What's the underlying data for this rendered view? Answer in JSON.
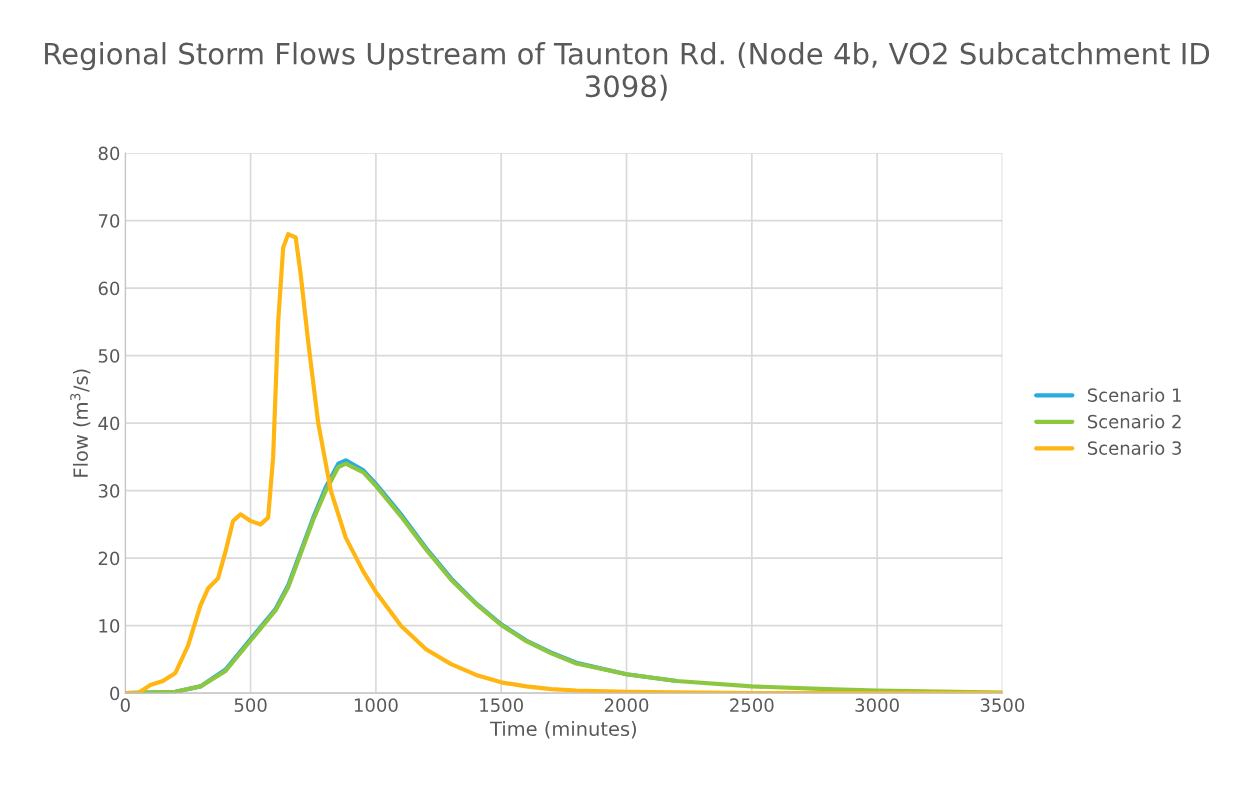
{
  "chart_data": {
    "type": "line",
    "title": "Regional Storm Flows Upstream of Taunton Rd. (Node 4b, VO2 Subcatchment ID 3098)",
    "xlabel": "Time (minutes)",
    "ylabel": "Flow (m$^{3}$/s)",
    "xlim": [
      0,
      3500
    ],
    "xticks": [
      0,
      500,
      1000,
      1500,
      2000,
      2500,
      3000,
      3500
    ],
    "ylim": [
      0,
      80
    ],
    "yticks": [
      0,
      10,
      20,
      30,
      40,
      50,
      60,
      70,
      80
    ],
    "grid": true,
    "legend": "right",
    "marker": "none",
    "line_style": "solid",
    "series": [
      {
        "name": "Scenario 1",
        "color": "#29abe2",
        "x": [
          0,
          200,
          300,
          400,
          500,
          600,
          650,
          700,
          750,
          800,
          850,
          880,
          950,
          1000,
          1100,
          1200,
          1300,
          1400,
          1500,
          1600,
          1700,
          1800,
          2000,
          2200
        ],
        "values": [
          0,
          0.2,
          1,
          3.5,
          8,
          12.5,
          16,
          21,
          26,
          30.5,
          34,
          34.5,
          33,
          31,
          26.5,
          21.5,
          17,
          13.3,
          10.2,
          7.8,
          6,
          4.5,
          2.8,
          1.8
        ]
      },
      {
        "name": "Scenario 2",
        "color": "#8dc63f",
        "x": [
          0,
          200,
          300,
          400,
          500,
          600,
          650,
          700,
          750,
          800,
          850,
          880,
          950,
          1000,
          1100,
          1200,
          1300,
          1400,
          1500,
          1600,
          1700,
          1800,
          2000,
          2200,
          2500,
          2800,
          3000,
          3500
        ],
        "values": [
          0,
          0.2,
          1,
          3.3,
          7.8,
          12.3,
          15.7,
          20.7,
          25.7,
          30,
          33.5,
          34,
          32.7,
          30.7,
          26.2,
          21.3,
          16.8,
          13.2,
          10.1,
          7.7,
          5.9,
          4.4,
          2.8,
          1.8,
          1,
          0.6,
          0.4,
          0.1
        ]
      },
      {
        "name": "Scenario 3",
        "color": "#ffb612",
        "x": [
          0,
          50,
          100,
          150,
          200,
          250,
          300,
          330,
          370,
          400,
          430,
          460,
          500,
          540,
          570,
          590,
          610,
          630,
          650,
          680,
          700,
          730,
          770,
          820,
          880,
          950,
          1000,
          1100,
          1200,
          1300,
          1400,
          1500,
          1600,
          1700,
          1800,
          2000,
          2500,
          3500
        ],
        "values": [
          0,
          0,
          1.2,
          1.8,
          3,
          7,
          13,
          15.5,
          17,
          21,
          25.5,
          26.5,
          25.5,
          25,
          26,
          35,
          55,
          66,
          68,
          67.5,
          62,
          52,
          40,
          30,
          23,
          18,
          15,
          10,
          6.5,
          4.3,
          2.7,
          1.6,
          1,
          0.6,
          0.4,
          0.2,
          0,
          0
        ]
      }
    ]
  }
}
